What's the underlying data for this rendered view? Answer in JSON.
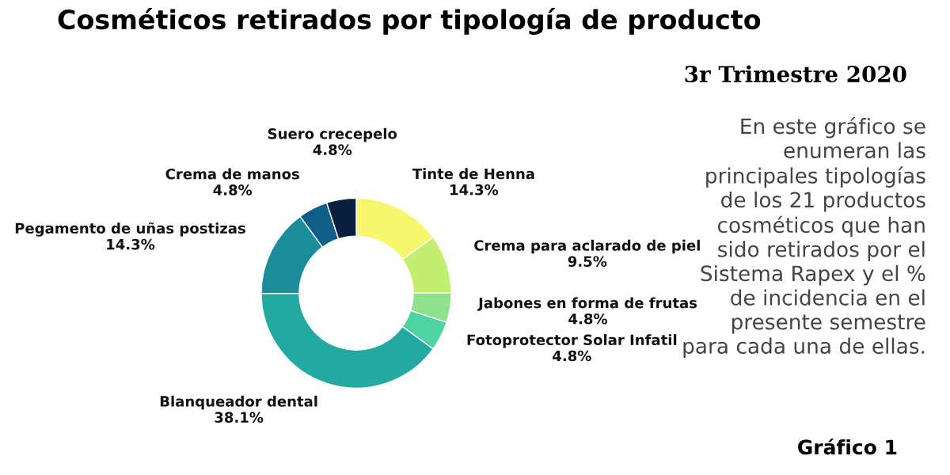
{
  "chart_data": {
    "type": "donut",
    "title": "Cosméticos retirados por tipología de producto",
    "subtitle": "3r Trimestre 2020",
    "categories": [
      "Tinte de Henna",
      "Crema para aclarado de piel",
      "Jabones en forma de frutas",
      "Fotoprotector Solar Infatil",
      "Blanqueador dental",
      "Pegamento de uñas postizas",
      "Crema de manos",
      "Suero crecepelo"
    ],
    "values": [
      14.3,
      9.5,
      4.8,
      4.8,
      38.1,
      14.3,
      4.8,
      4.8
    ],
    "value_labels": [
      "14.3%",
      "9.5%",
      "4.8%",
      "4.8%",
      "38.1%",
      "14.3%",
      "4.8%",
      "4.8%"
    ],
    "colors": [
      "#f7f76e",
      "#c3ef6e",
      "#8ee28c",
      "#4fd3a2",
      "#22aaa2",
      "#1b8c9c",
      "#0f5e88",
      "#0b1f3f"
    ],
    "annotations": [
      "En este gráfico se\nenumeran las\nprincipales tipologías\nde los 21 productos\ncosméticos que han\nsido retirados por el\nSistema Rapex y el %\nde incidencia en el\npresente semestre\npara cada una de ellas.",
      "Gráfico 1"
    ]
  }
}
